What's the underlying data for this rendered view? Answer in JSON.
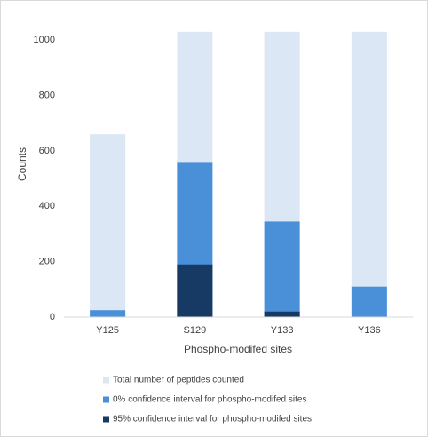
{
  "chart_data": {
    "type": "bar",
    "overlap": true,
    "x_label": "Phospho-modifed sites",
    "y_label": "Counts",
    "categories": [
      "Y125",
      "S129",
      "Y133",
      "Y136"
    ],
    "series": [
      {
        "name": "Total number of peptides counted",
        "color": "#dbe7f5",
        "values": [
          660,
          1030,
          1030,
          1030
        ]
      },
      {
        "name": "0% confidence interval for phospho-modifed sites",
        "color": "#4a90d9",
        "values": [
          25,
          560,
          345,
          110
        ]
      },
      {
        "name": "95% confidence interval for phospho-modifed sites",
        "color": "#163a63",
        "values": [
          0,
          190,
          20,
          0
        ]
      }
    ],
    "ylim": [
      0,
      1100
    ],
    "yticks": [
      0,
      200,
      400,
      600,
      800,
      1000
    ],
    "grid": false,
    "legend": "bottom"
  }
}
